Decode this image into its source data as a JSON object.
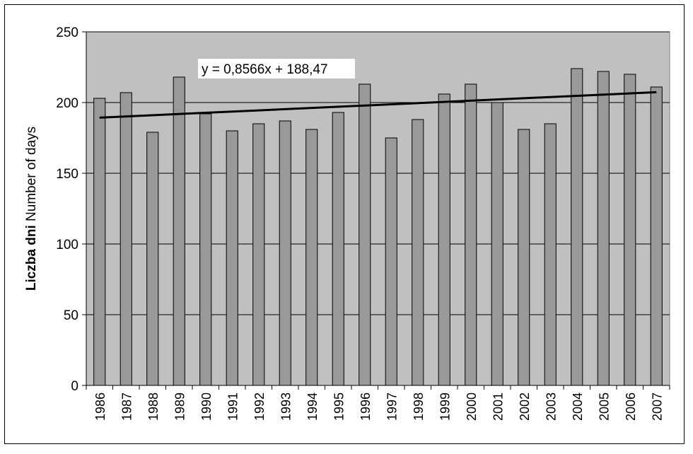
{
  "chart_data": {
    "type": "bar",
    "title": "",
    "xlabel": "",
    "ylabel_bold": "Liczba dni",
    "ylabel_rest": " Number of days",
    "categories": [
      "1986",
      "1987",
      "1988",
      "1989",
      "1990",
      "1991",
      "1992",
      "1993",
      "1994",
      "1995",
      "1996",
      "1997",
      "1998",
      "1999",
      "2000",
      "2001",
      "2002",
      "2003",
      "2004",
      "2005",
      "2006",
      "2007"
    ],
    "values": [
      203,
      207,
      179,
      218,
      192,
      180,
      185,
      187,
      181,
      193,
      213,
      175,
      188,
      206,
      213,
      200,
      181,
      185,
      224,
      222,
      220,
      211
    ],
    "ylim": [
      0,
      250
    ],
    "yticks": [
      0,
      50,
      100,
      150,
      200,
      250
    ],
    "grid": true,
    "legend": "none",
    "trendline": {
      "label": "y = 0,8566x + 188,47",
      "slope": 0.8566,
      "intercept": 188.47
    },
    "colors": {
      "plot_background": "#c0c0c0",
      "bar_fill": "#999999",
      "bar_stroke": "#000000",
      "trendline": "#000000"
    }
  }
}
